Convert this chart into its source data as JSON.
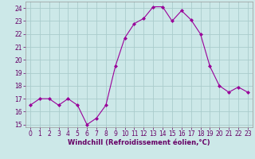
{
  "x": [
    0,
    1,
    2,
    3,
    4,
    5,
    6,
    7,
    8,
    9,
    10,
    11,
    12,
    13,
    14,
    15,
    16,
    17,
    18,
    19,
    20,
    21,
    22,
    23
  ],
  "y": [
    16.5,
    17.0,
    17.0,
    16.5,
    17.0,
    16.5,
    15.0,
    15.5,
    16.5,
    19.5,
    21.7,
    22.8,
    23.2,
    24.1,
    24.1,
    23.0,
    23.8,
    23.1,
    22.0,
    19.5,
    18.0,
    17.5,
    17.9,
    17.5
  ],
  "line_color": "#990099",
  "marker": "D",
  "marker_size": 2.0,
  "bg_color": "#cce8e8",
  "grid_color": "#aacccc",
  "xlabel": "Windchill (Refroidissement éolien,°C)",
  "xlabel_color": "#660066",
  "xlabel_fontsize": 6.0,
  "tick_fontsize": 5.5,
  "ylim": [
    14.8,
    24.5
  ],
  "xlim": [
    -0.5,
    23.5
  ],
  "yticks": [
    15,
    16,
    17,
    18,
    19,
    20,
    21,
    22,
    23,
    24
  ],
  "xticks": [
    0,
    1,
    2,
    3,
    4,
    5,
    6,
    7,
    8,
    9,
    10,
    11,
    12,
    13,
    14,
    15,
    16,
    17,
    18,
    19,
    20,
    21,
    22,
    23
  ]
}
